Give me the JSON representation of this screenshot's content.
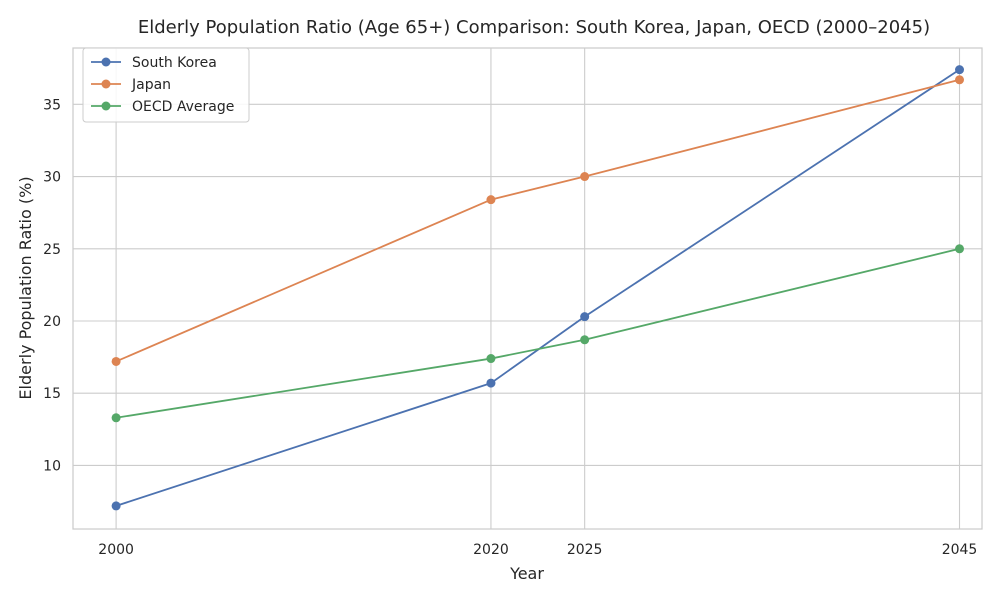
{
  "chart_data": {
    "type": "line",
    "title": "Elderly Population Ratio (Age 65+) Comparison: South Korea, Japan, OECD (2000–2045)",
    "xlabel": "Year",
    "ylabel": "Elderly Population Ratio (%)",
    "x": [
      2000,
      2020,
      2025,
      2045
    ],
    "x_tick_labels": [
      "2000",
      "2020",
      "2025",
      "2045"
    ],
    "xlim": [
      1997.7,
      2046.2
    ],
    "ylim": [
      5.6,
      38.9
    ],
    "y_ticks": [
      10,
      15,
      20,
      25,
      30,
      35
    ],
    "y_tick_labels": [
      "10",
      "15",
      "20",
      "25",
      "30",
      "35"
    ],
    "grid": true,
    "legend_position": "top-left",
    "series": [
      {
        "name": "South Korea",
        "color": "#4c72b0",
        "values": [
          7.2,
          15.7,
          20.3,
          37.4
        ]
      },
      {
        "name": "Japan",
        "color": "#dd8452",
        "values": [
          17.2,
          28.4,
          30.0,
          36.7
        ]
      },
      {
        "name": "OECD Average",
        "color": "#55a868",
        "values": [
          13.3,
          17.4,
          18.7,
          25.0
        ]
      }
    ]
  }
}
